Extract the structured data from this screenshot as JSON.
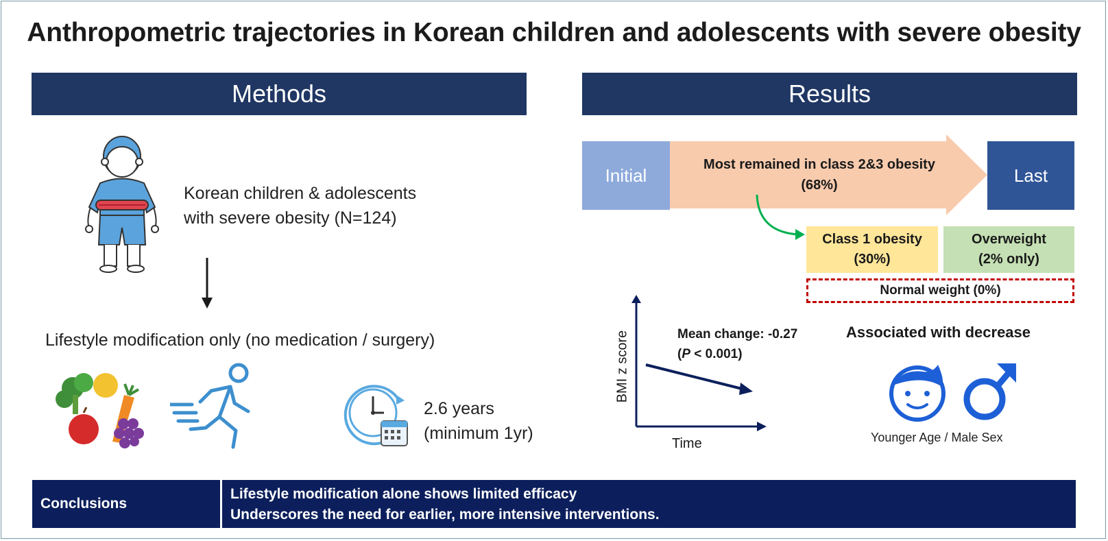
{
  "title": "Anthropometric trajectories in Korean children and adolescents with severe obesity",
  "methods": {
    "header": "Methods",
    "population_line1": "Korean children & adolescents",
    "population_line2": "with severe obesity (N=124)",
    "intervention": "Lifestyle modification only (no medication / surgery)",
    "duration_line1": "2.6 years",
    "duration_line2": "(minimum 1yr)"
  },
  "results": {
    "header": "Results",
    "initial_label": "Initial",
    "last_label": "Last",
    "arrow_line1": "Most remained in class 2&3 obesity",
    "arrow_line2": "(68%)",
    "class1_line1": "Class 1 obesity",
    "class1_line2": "(30%)",
    "overweight_line1": "Overweight",
    "overweight_line2": "(2% only)",
    "normal_weight": "Normal weight (0%)",
    "ylabel": "BMI z score",
    "xlabel": "Time",
    "mean_change": "Mean change: -0.27",
    "p_label": "P",
    "p_value": " < 0.001)",
    "assoc_title": "Associated with decrease",
    "assoc_caption": "Younger Age / Male Sex"
  },
  "conclusions": {
    "label": "Conclusions",
    "line1": "Lifestyle modification alone shows limited efficacy",
    "line2": "Underscores the need for earlier, more intensive interventions."
  },
  "colors": {
    "header_navy": "#203764",
    "initial_box": "#8eaadb",
    "last_box": "#2f5597",
    "arrow_peach": "#f8cbad",
    "class1_yellow": "#ffe699",
    "overweight_green": "#c5e0b4",
    "normal_border": "#c00000",
    "curve_green": "#00b050",
    "conclusions_bg": "#0c1f5c"
  }
}
